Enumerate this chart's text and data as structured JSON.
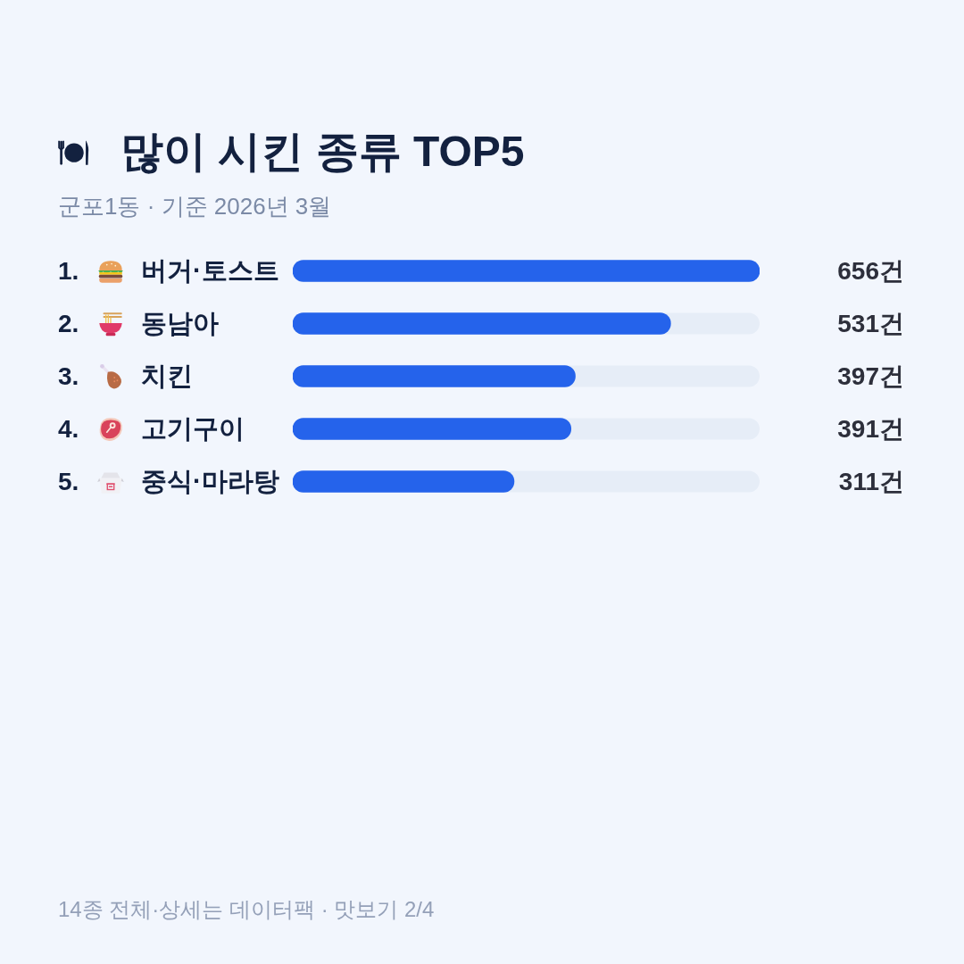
{
  "chart_data": {
    "type": "bar",
    "orientation": "horizontal",
    "title": "많이 시킨 종류 TOP5",
    "subtitle": "군포1동 · 기준 2026년 3월",
    "categories": [
      "1. 버거·토스트",
      "2. 동남아",
      "3. 치킨",
      "4. 고기구이",
      "5. 중식·마라탕"
    ],
    "values": [
      656,
      531,
      397,
      391,
      311
    ],
    "value_labels": [
      "656건",
      "531건",
      "397건",
      "391건",
      "311건"
    ],
    "color": "#2563eb",
    "xlim": [
      0,
      656
    ],
    "annotations": [
      "14종 전체·상세는 데이터팩 · 맛보기 2/4"
    ]
  }
}
